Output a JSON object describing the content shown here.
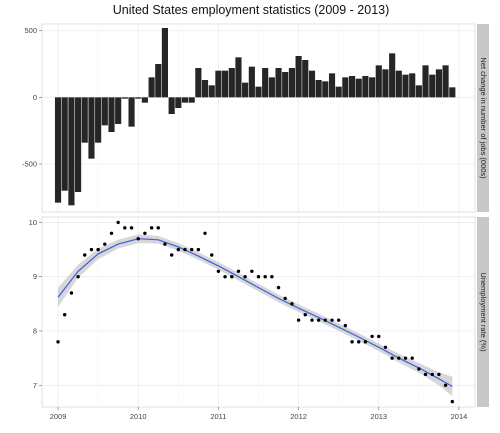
{
  "chart_data": {
    "title": "United States employment statistics (2009 - 2013)",
    "x_ticks": [
      "2009",
      "2010",
      "2011",
      "2012",
      "2013",
      "2014"
    ],
    "x_tick_values": [
      2009,
      2010,
      2011,
      2012,
      2013,
      2014
    ],
    "xlim": [
      2008.8,
      2014.2
    ],
    "grid": true,
    "panels": [
      {
        "type": "bar",
        "strip_label": "Net change in number of jobs (000s)",
        "ylim": [
          -860,
          550
        ],
        "y_ticks": [
          500,
          0,
          -500
        ],
        "bar_color": "#262626",
        "x": [
          2009.0,
          2009.083,
          2009.167,
          2009.25,
          2009.333,
          2009.417,
          2009.5,
          2009.583,
          2009.667,
          2009.75,
          2009.833,
          2009.917,
          2010.0,
          2010.083,
          2010.167,
          2010.25,
          2010.333,
          2010.417,
          2010.5,
          2010.583,
          2010.667,
          2010.75,
          2010.833,
          2010.917,
          2011.0,
          2011.083,
          2011.167,
          2011.25,
          2011.333,
          2011.417,
          2011.5,
          2011.583,
          2011.667,
          2011.75,
          2011.833,
          2011.917,
          2012.0,
          2012.083,
          2012.167,
          2012.25,
          2012.333,
          2012.417,
          2012.5,
          2012.583,
          2012.667,
          2012.75,
          2012.833,
          2012.917,
          2013.0,
          2013.083,
          2013.167,
          2013.25,
          2013.333,
          2013.417,
          2013.5,
          2013.583,
          2013.667,
          2013.75,
          2013.833,
          2013.917
        ],
        "values": [
          -790,
          -700,
          -810,
          -710,
          -340,
          -460,
          -340,
          -210,
          -260,
          -200,
          -10,
          -220,
          -10,
          -40,
          150,
          250,
          520,
          -125,
          -80,
          -40,
          -40,
          220,
          130,
          90,
          200,
          200,
          220,
          300,
          110,
          230,
          80,
          220,
          150,
          220,
          190,
          220,
          310,
          280,
          200,
          130,
          120,
          180,
          80,
          150,
          160,
          140,
          160,
          150,
          240,
          210,
          330,
          200,
          170,
          180,
          90,
          240,
          170,
          210,
          240,
          75
        ]
      },
      {
        "type": "scatter+smooth",
        "strip_label": "Unemployment rate (%)",
        "ylim": [
          6.6,
          10.1
        ],
        "y_ticks": [
          10,
          9,
          8,
          7
        ],
        "point_color": "#000000",
        "smooth_color": "#3b5fd9",
        "band_color": "#bcbcbc",
        "x": [
          2009.0,
          2009.083,
          2009.167,
          2009.25,
          2009.333,
          2009.417,
          2009.5,
          2009.583,
          2009.667,
          2009.75,
          2009.833,
          2009.917,
          2010.0,
          2010.083,
          2010.167,
          2010.25,
          2010.333,
          2010.417,
          2010.5,
          2010.583,
          2010.667,
          2010.75,
          2010.833,
          2010.917,
          2011.0,
          2011.083,
          2011.167,
          2011.25,
          2011.333,
          2011.417,
          2011.5,
          2011.583,
          2011.667,
          2011.75,
          2011.833,
          2011.917,
          2012.0,
          2012.083,
          2012.167,
          2012.25,
          2012.333,
          2012.417,
          2012.5,
          2012.583,
          2012.667,
          2012.75,
          2012.833,
          2012.917,
          2013.0,
          2013.083,
          2013.167,
          2013.25,
          2013.333,
          2013.417,
          2013.5,
          2013.583,
          2013.667,
          2013.75,
          2013.833,
          2013.917
        ],
        "values": [
          7.8,
          8.3,
          8.7,
          9.0,
          9.4,
          9.5,
          9.5,
          9.6,
          9.8,
          10.0,
          9.9,
          9.9,
          9.7,
          9.8,
          9.9,
          9.9,
          9.6,
          9.4,
          9.5,
          9.5,
          9.5,
          9.5,
          9.8,
          9.4,
          9.1,
          9.0,
          9.0,
          9.1,
          9.0,
          9.1,
          9.0,
          9.0,
          9.0,
          8.8,
          8.6,
          8.5,
          8.2,
          8.3,
          8.2,
          8.2,
          8.2,
          8.2,
          8.2,
          8.1,
          7.8,
          7.8,
          7.8,
          7.9,
          7.9,
          7.7,
          7.5,
          7.5,
          7.5,
          7.5,
          7.3,
          7.2,
          7.2,
          7.2,
          7.0,
          6.7
        ],
        "smooth_x": [
          2009.0,
          2009.25,
          2009.5,
          2009.75,
          2010.0,
          2010.25,
          2010.5,
          2010.75,
          2011.0,
          2011.25,
          2011.5,
          2011.75,
          2012.0,
          2012.25,
          2012.5,
          2012.75,
          2013.0,
          2013.25,
          2013.5,
          2013.75,
          2013.917
        ],
        "smooth_y": [
          8.62,
          9.1,
          9.42,
          9.6,
          9.7,
          9.68,
          9.55,
          9.38,
          9.2,
          9.0,
          8.8,
          8.6,
          8.42,
          8.25,
          8.07,
          7.89,
          7.7,
          7.5,
          7.32,
          7.12,
          6.98
        ],
        "band_halfwidth": [
          0.18,
          0.12,
          0.1,
          0.08,
          0.08,
          0.07,
          0.07,
          0.07,
          0.07,
          0.07,
          0.07,
          0.07,
          0.07,
          0.07,
          0.07,
          0.07,
          0.07,
          0.08,
          0.09,
          0.12,
          0.18
        ]
      }
    ]
  }
}
